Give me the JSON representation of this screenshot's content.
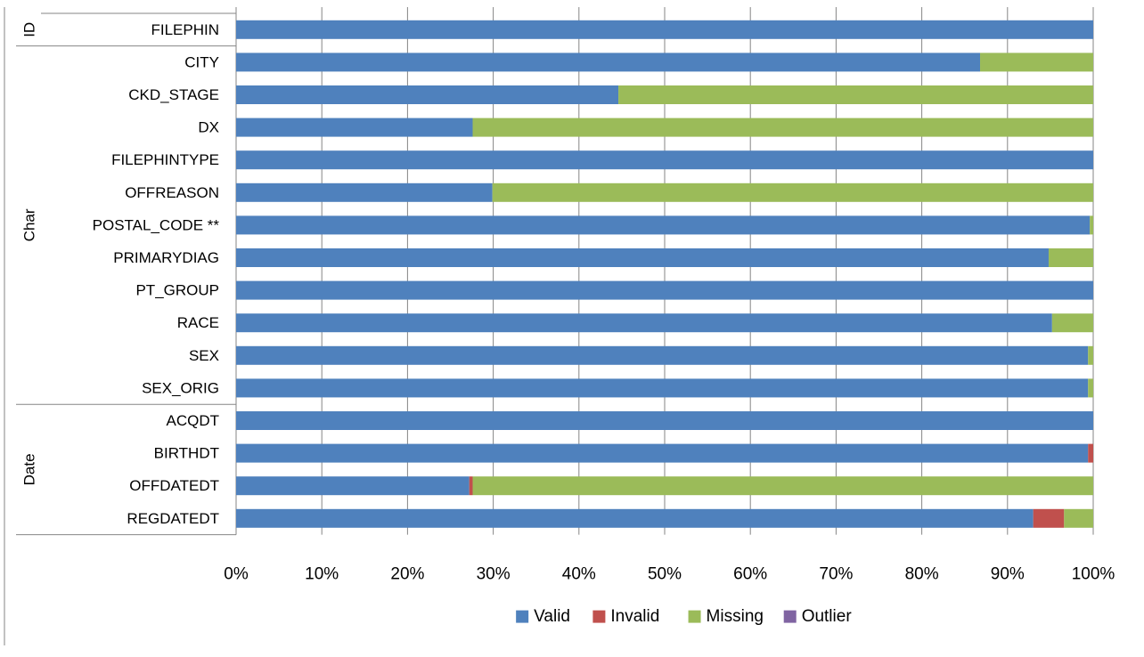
{
  "chart_data": {
    "type": "bar",
    "orientation": "horizontal",
    "stacking": "percent",
    "groups": [
      {
        "label": "ID",
        "categories": [
          "FILEPHIN"
        ]
      },
      {
        "label": "Char",
        "categories": [
          "CITY",
          "CKD_STAGE",
          "DX",
          "FILEPHINTYPE",
          "OFFREASON",
          "POSTAL_CODE **",
          "PRIMARYDIAG",
          "PT_GROUP",
          "RACE",
          "SEX",
          "SEX_ORIG"
        ]
      },
      {
        "label": "Date",
        "categories": [
          "ACQDT",
          "BIRTHDT",
          "OFFDATEDT",
          "REGDATEDT"
        ]
      }
    ],
    "categories": [
      "FILEPHIN",
      "CITY",
      "CKD_STAGE",
      "DX",
      "FILEPHINTYPE",
      "OFFREASON",
      "POSTAL_CODE **",
      "PRIMARYDIAG",
      "PT_GROUP",
      "RACE",
      "SEX",
      "SEX_ORIG",
      "ACQDT",
      "BIRTHDT",
      "OFFDATEDT",
      "REGDATEDT"
    ],
    "series": [
      {
        "name": "Valid",
        "color": "#4F81BD",
        "values": [
          100,
          86.8,
          44.6,
          27.6,
          100,
          29.9,
          99.6,
          94.8,
          100,
          95.2,
          99.4,
          99.4,
          100,
          99.4,
          27.2,
          93.0
        ]
      },
      {
        "name": "Invalid",
        "color": "#C0504D",
        "values": [
          0,
          0,
          0,
          0,
          0,
          0,
          0,
          0,
          0,
          0,
          0,
          0,
          0,
          0.6,
          0.4,
          3.6
        ]
      },
      {
        "name": "Missing",
        "color": "#9BBB59",
        "values": [
          0,
          13.2,
          55.4,
          72.4,
          0,
          70.1,
          0.4,
          5.2,
          0,
          4.8,
          0.6,
          0.6,
          0,
          0,
          72.4,
          3.4
        ]
      },
      {
        "name": "Outlier",
        "color": "#8064A2",
        "values": [
          0,
          0,
          0,
          0,
          0,
          0,
          0,
          0,
          0,
          0,
          0,
          0,
          0,
          0,
          0,
          0
        ]
      }
    ],
    "xlim": [
      0,
      100
    ],
    "x_ticks": [
      "0%",
      "10%",
      "20%",
      "30%",
      "40%",
      "50%",
      "60%",
      "70%",
      "80%",
      "90%",
      "100%"
    ],
    "grid": "vertical",
    "legend_position": "bottom"
  }
}
